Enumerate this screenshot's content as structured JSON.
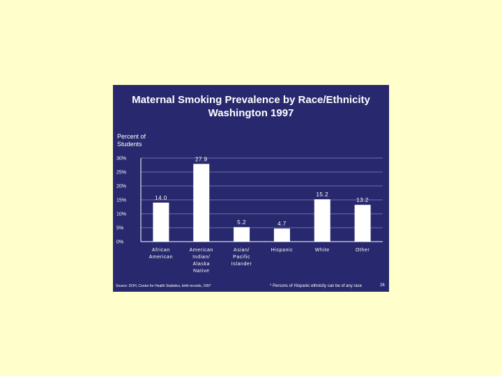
{
  "chart_data": {
    "type": "bar",
    "title": [
      "Maternal Smoking Prevalence by Race/Ethnicity",
      "Washington 1997"
    ],
    "ylabel": [
      "Percent of",
      "Students"
    ],
    "xlabel": "",
    "categories": [
      [
        "African",
        "American"
      ],
      [
        "American",
        "Indian/",
        "Alaska",
        "Native"
      ],
      [
        "Asian/",
        "Pacific",
        "Islander"
      ],
      [
        "Hispanic"
      ],
      [
        "White"
      ],
      [
        "Other"
      ]
    ],
    "values": [
      14.0,
      27.9,
      5.2,
      4.7,
      15.2,
      13.2
    ],
    "data_labels": [
      "14.0",
      "27.9",
      "5.2",
      "4.7",
      "15.2",
      "13.2"
    ],
    "yticks": [
      0,
      5,
      10,
      15,
      20,
      25,
      30
    ],
    "ytick_labels": [
      "0%",
      "5%",
      "10%",
      "15%",
      "20%",
      "25%",
      "30%"
    ],
    "ylim": [
      0,
      30
    ],
    "grid": true,
    "bar_color": "#ffffff",
    "background": "#28286e"
  },
  "footer": {
    "source": "Source: DOH, Center for Health Statistics, birth records, 1997",
    "footnote": "*   Persons of Hispanic ethnicity can be of any race",
    "page": "26"
  }
}
